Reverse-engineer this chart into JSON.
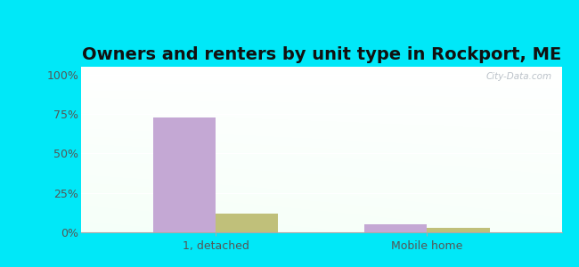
{
  "title": "Owners and renters by unit type in Rockport, ME",
  "categories": [
    "1, detached",
    "Mobile home"
  ],
  "owner_values": [
    73,
    5
  ],
  "renter_values": [
    12,
    3
  ],
  "owner_color": "#c4a8d4",
  "renter_color": "#c0c07a",
  "outer_bg": "#00e8f8",
  "yticks": [
    0,
    25,
    50,
    75,
    100
  ],
  "ytick_labels": [
    "0%",
    "25%",
    "50%",
    "75%",
    "100%"
  ],
  "ylim": [
    0,
    105
  ],
  "bar_width": 0.13,
  "watermark": "City-Data.com",
  "title_fontsize": 14,
  "tick_fontsize": 9,
  "legend_fontsize": 9,
  "x_positions": [
    0.28,
    0.72
  ]
}
